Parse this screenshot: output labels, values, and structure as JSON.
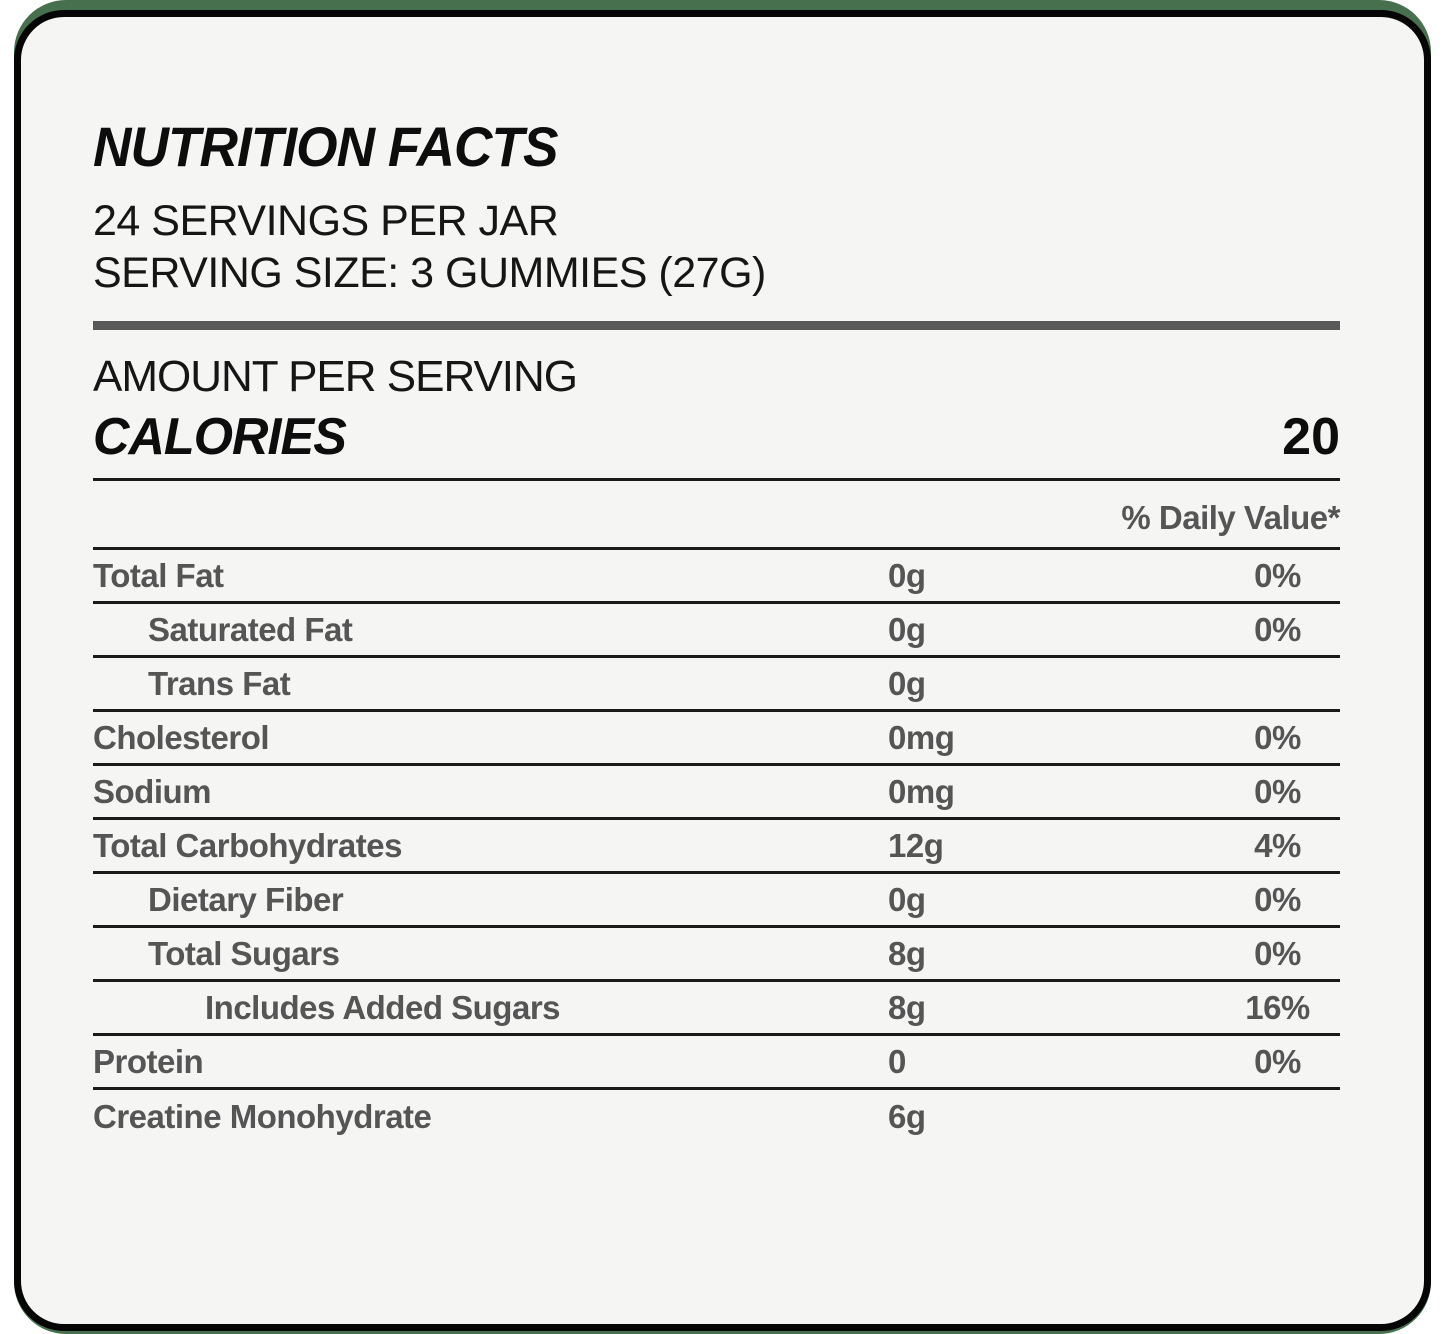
{
  "colors": {
    "page_background": "#ffffff",
    "green_trim": "#47704e",
    "card_background": "#f5f5f4",
    "border_black": "#060606",
    "heading_black": "#0d0d0d",
    "row_gray": "#555555",
    "bar_gray": "#595959"
  },
  "header": {
    "title": "NUTRITION FACTS",
    "servings_per_jar": "24 SERVINGS PER JAR",
    "serving_size": "SERVING SIZE: 3 GUMMIES (27G)"
  },
  "calories": {
    "section_label": "AMOUNT PER SERVING",
    "label": "CALORIES",
    "value": "20"
  },
  "table": {
    "daily_value_header": "% Daily Value*",
    "rows": [
      {
        "name": "Total Fat",
        "amount": "0g",
        "dv": "0%",
        "indent": 0
      },
      {
        "name": "Saturated Fat",
        "amount": "0g",
        "dv": "0%",
        "indent": 1
      },
      {
        "name": "Trans Fat",
        "amount": "0g",
        "dv": "",
        "indent": 1
      },
      {
        "name": "Cholesterol",
        "amount": "0mg",
        "dv": "0%",
        "indent": 0
      },
      {
        "name": "Sodium",
        "amount": "0mg",
        "dv": "0%",
        "indent": 0
      },
      {
        "name": "Total Carbohydrates",
        "amount": "12g",
        "dv": "4%",
        "indent": 0
      },
      {
        "name": "Dietary Fiber",
        "amount": "0g",
        "dv": "0%",
        "indent": 1
      },
      {
        "name": "Total Sugars",
        "amount": "8g",
        "dv": "0%",
        "indent": 1
      },
      {
        "name": "Includes Added Sugars",
        "amount": "8g",
        "dv": "16%",
        "indent": 2
      },
      {
        "name": "Protein",
        "amount": "0",
        "dv": "0%",
        "indent": 0
      },
      {
        "name": "Creatine Monohydrate",
        "amount": "6g",
        "dv": "",
        "indent": 0
      }
    ]
  }
}
